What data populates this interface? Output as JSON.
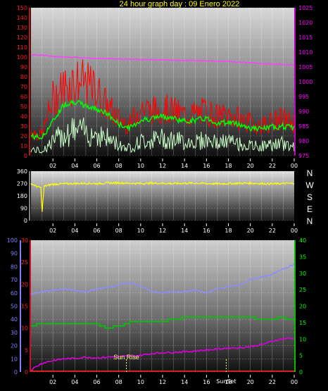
{
  "title": "24 hour graph day : 09 Enero 2022",
  "colors": {
    "title": "#ffff00",
    "red_axis": "#ff2020",
    "magenta_axis": "#ff00ff",
    "white_axis": "#ffffff",
    "blue_axis": "#8080ff",
    "green_axis": "#00ff00",
    "wind_speed": "#ff0000",
    "wind_gust_line": "#00ff00",
    "wind_min": "#c8ffc8",
    "pressure": "#ff40ff",
    "direction": "#ffff00",
    "humidity": "#8c8cff",
    "temperature": "#00c800",
    "dewpoint": "#dd00dd",
    "solar": "#ff2020",
    "sun_marker": "#ffff80"
  },
  "chart_data": [
    {
      "type": "line",
      "name": "wind-pressure",
      "x_ticks": [
        "02",
        "04",
        "06",
        "08",
        "10",
        "12",
        "14",
        "16",
        "18",
        "20",
        "22",
        "00"
      ],
      "left_ticks": [
        "150",
        "140",
        "130",
        "120",
        "110",
        "100",
        "90",
        "80",
        "70",
        "60",
        "50",
        "40",
        "30",
        "20",
        "10",
        "0"
      ],
      "right_ticks": [
        "1025",
        "1020",
        "1015",
        "1010",
        "1005",
        "1000",
        "995",
        "990",
        "985",
        "980",
        "975"
      ],
      "left_range": [
        0,
        150
      ],
      "right_range": [
        975,
        1025
      ],
      "hours": [
        0,
        1,
        2,
        3,
        4,
        5,
        6,
        7,
        8,
        9,
        10,
        11,
        12,
        13,
        14,
        15,
        16,
        17,
        18,
        19,
        20,
        21,
        22,
        23,
        24
      ],
      "series": [
        {
          "key": "gust_envelope",
          "values": [
            30,
            25,
            70,
            85,
            92,
            88,
            80,
            60,
            45,
            38,
            60,
            55,
            58,
            55,
            50,
            52,
            55,
            48,
            50,
            45,
            40,
            38,
            42,
            45,
            40
          ]
        },
        {
          "key": "gust_avg",
          "values": [
            20,
            18,
            35,
            52,
            55,
            50,
            48,
            42,
            32,
            28,
            36,
            38,
            40,
            38,
            35,
            36,
            38,
            33,
            34,
            32,
            28,
            27,
            29,
            30,
            28
          ]
        },
        {
          "key": "wind_min",
          "values": [
            8,
            6,
            18,
            28,
            32,
            30,
            28,
            22,
            14,
            10,
            18,
            20,
            22,
            20,
            18,
            18,
            20,
            16,
            18,
            15,
            12,
            12,
            14,
            15,
            12
          ]
        },
        {
          "key": "pressure",
          "values": [
            1009.2,
            1009.0,
            1008.6,
            1008.3,
            1008.2,
            1008.0,
            1007.9,
            1007.8,
            1007.7,
            1007.6,
            1007.5,
            1007.5,
            1007.4,
            1007.3,
            1007.2,
            1007.2,
            1007.1,
            1006.9,
            1006.8,
            1006.6,
            1006.4,
            1006.2,
            1006.0,
            1005.8,
            1005.6
          ]
        }
      ]
    },
    {
      "type": "line",
      "name": "direction",
      "x_ticks": [
        "02",
        "04",
        "06",
        "08",
        "10",
        "12",
        "14",
        "16",
        "18",
        "20",
        "22",
        "00"
      ],
      "left_ticks": [
        "360",
        "270",
        "180",
        "90",
        "0"
      ],
      "right_labels": [
        "N",
        "W",
        "S",
        "E",
        "N"
      ],
      "left_range": [
        0,
        360
      ],
      "hours": [
        0,
        0.5,
        0.9,
        1.0,
        1.2,
        2,
        3,
        4,
        5,
        6,
        7,
        8,
        9,
        10,
        11,
        12,
        13,
        14,
        15,
        16,
        17,
        18,
        19,
        20,
        21,
        22,
        23,
        24
      ],
      "values": [
        270,
        250,
        240,
        50,
        250,
        265,
        268,
        270,
        272,
        270,
        274,
        275,
        272,
        270,
        273,
        272,
        270,
        272,
        273,
        270,
        268,
        270,
        272,
        273,
        270,
        268,
        270,
        272
      ]
    },
    {
      "type": "line",
      "name": "humidity-temperature",
      "x_ticks": [
        "02",
        "04",
        "06",
        "08",
        "10",
        "12",
        "14",
        "16",
        "18",
        "20",
        "22",
        "00"
      ],
      "blue_ticks": [
        "100",
        "90",
        "80",
        "70",
        "60",
        "50",
        "40",
        "30",
        "20",
        "10",
        "0"
      ],
      "red_ticks": [
        "30",
        "25",
        "20",
        "15",
        "10",
        "5",
        "0"
      ],
      "green_ticks": [
        "40",
        "35",
        "30",
        "25",
        "20",
        "15",
        "10",
        "5",
        "0"
      ],
      "blue_range": [
        0,
        100
      ],
      "red_range": [
        0,
        30
      ],
      "green_range": [
        0,
        40
      ],
      "annotations": {
        "sunrise": "Sun Rise",
        "sunset": "SunSet"
      },
      "sunrise_hour": 8.7,
      "sunset_hour": 17.8,
      "hours": [
        0,
        1,
        2,
        3,
        4,
        5,
        6,
        7,
        8,
        9,
        10,
        11,
        12,
        13,
        14,
        15,
        16,
        17,
        18,
        19,
        20,
        21,
        22,
        23,
        24
      ],
      "series": [
        {
          "key": "humidity",
          "values": [
            59,
            61,
            62,
            63,
            62,
            61,
            63,
            64,
            66,
            68,
            65,
            61,
            60,
            61,
            61,
            62,
            60,
            63,
            65,
            66,
            70,
            72,
            74,
            78,
            82
          ]
        },
        {
          "key": "temperature",
          "values": [
            10.5,
            11.0,
            11.2,
            11.0,
            11.0,
            11.2,
            10.8,
            10.0,
            10.5,
            11.3,
            11.5,
            11.4,
            11.6,
            12.0,
            12.4,
            12.7,
            12.6,
            12.5,
            12.3,
            12.5,
            12.4,
            12.0,
            12.2,
            12.3,
            12.0
          ]
        },
        {
          "key": "dewpoint",
          "values": [
            0.5,
            2.0,
            2.6,
            3.0,
            3.1,
            3.4,
            3.2,
            3.4,
            3.5,
            3.6,
            3.8,
            4.2,
            4.4,
            4.5,
            4.6,
            4.8,
            5.0,
            5.2,
            5.5,
            5.5,
            5.8,
            6.2,
            7.0,
            7.6,
            7.7
          ]
        },
        {
          "key": "solar",
          "values": [
            0.2,
            0.2,
            0.2,
            0.2,
            0.2,
            0.2,
            0.2,
            0.2,
            0.2,
            0.2,
            0.2,
            0.2,
            0.2,
            0.2,
            0.2,
            0.2,
            0.2,
            0.2,
            0.2,
            0.2,
            0.2,
            0.2,
            0.2,
            0.2,
            0.2
          ]
        }
      ]
    }
  ]
}
